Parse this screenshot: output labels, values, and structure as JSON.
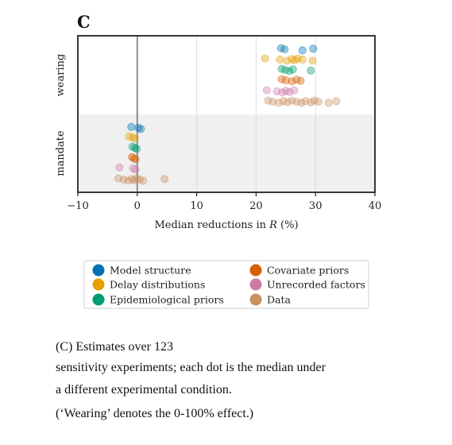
{
  "panel_letter": "C",
  "chart_data": {
    "type": "scatter",
    "orientation": "horizontal",
    "xlabel_prefix": "Median reductions in ",
    "xlabel_var": "R",
    "xlabel_suffix": " (%)",
    "xlim": [
      -10,
      40
    ],
    "xticks": [
      -10,
      0,
      10,
      20,
      30,
      40
    ],
    "xtick_labels": [
      "−10",
      "0",
      "10",
      "20",
      "30",
      "40"
    ],
    "grid": "vertical",
    "legend_placement": "below",
    "categories": [
      "wearing",
      "mandate"
    ],
    "series": [
      {
        "name": "Model structure",
        "color": "#0072B2",
        "wearing": [
          24.2,
          24.8,
          27.8,
          29.6
        ],
        "mandate": [
          -1.0,
          0.2,
          0.6
        ]
      },
      {
        "name": "Delay distributions",
        "color": "#E69F00",
        "wearing": [
          21.5,
          24.0,
          25.2,
          26.0,
          26.5,
          27.0,
          27.8,
          29.5
        ],
        "mandate": [
          -1.4,
          -0.8,
          -0.4
        ]
      },
      {
        "name": "Epidemiological priors",
        "color": "#009E73",
        "wearing": [
          24.3,
          24.9,
          25.6,
          26.2,
          29.2
        ],
        "mandate": [
          -0.8,
          -0.4,
          -0.1
        ]
      },
      {
        "name": "Covariate priors",
        "color": "#D55E00",
        "wearing": [
          24.3,
          25.0,
          26.0,
          26.8,
          27.5
        ],
        "mandate": [
          -0.9,
          -0.6,
          -0.3
        ]
      },
      {
        "name": "Unrecorded factors",
        "color": "#CC79A7",
        "wearing": [
          21.8,
          23.5,
          24.4,
          25.0,
          25.6,
          26.4
        ],
        "mandate": [
          -3.0,
          -0.7,
          -0.3
        ]
      },
      {
        "name": "Data",
        "color": "#CA9161",
        "wearing": [
          22.0,
          22.8,
          23.8,
          24.6,
          25.3,
          26.0,
          26.8,
          27.6,
          28.3,
          29.2,
          29.8,
          30.5,
          32.2,
          33.5
        ],
        "mandate": [
          -3.2,
          -2.3,
          -1.5,
          -0.9,
          -0.5,
          -0.1,
          0.4,
          1.0,
          4.6
        ]
      }
    ]
  },
  "caption": {
    "line1": "(C) Estimates over 123",
    "line2": "sensitivity experiments; each dot is the median under",
    "line3": "a different experimental condition.",
    "line4": "(‘Wearing’ denotes the 0-100% effect.)"
  }
}
